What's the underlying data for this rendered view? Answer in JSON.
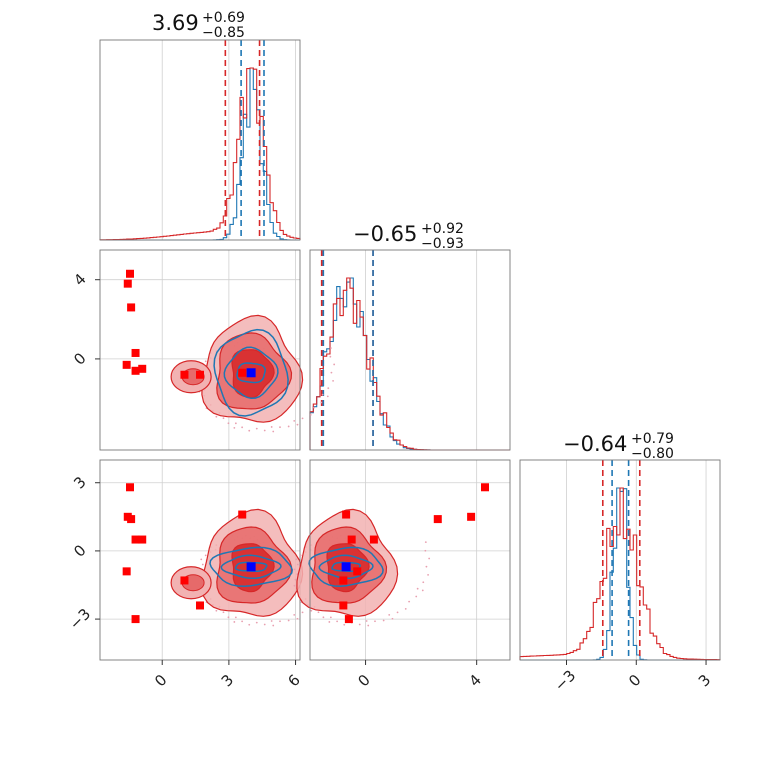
{
  "chart_data": {
    "type": "corner",
    "colors": {
      "red": "#d62728",
      "blue": "#1f77b4",
      "fill_light": "#f2b2b2",
      "fill_mid": "#e66a6a",
      "fill_dark": "#d62728",
      "marker_truth": "#0000ff",
      "marker_points": "#ff0000"
    },
    "params": [
      {
        "title": "3.69",
        "plus": "+0.69",
        "minus": "−0.85",
        "range": [
          -2.8,
          6.2
        ],
        "ticks": [
          0,
          3,
          6
        ],
        "tick_labels": [
          "0",
          "3",
          "6"
        ]
      },
      {
        "title": "−0.65",
        "plus": "+0.92",
        "minus": "−0.93",
        "range": [
          -2.0,
          5.2
        ],
        "ticks": [
          0,
          4
        ],
        "tick_labels": [
          "0",
          "4"
        ]
      },
      {
        "title": "−0.64",
        "plus": "+0.79",
        "minus": "−0.80",
        "range": [
          -5.0,
          3.6
        ],
        "ticks": [
          -3,
          0,
          3
        ],
        "tick_labels": [
          "−3",
          "0",
          "3"
        ]
      }
    ],
    "row_ticks": [
      {
        "ticks": [
          4,
          0
        ],
        "tick_labels": [
          "4",
          "0"
        ]
      },
      {
        "ticks": [
          3,
          0,
          -3
        ],
        "tick_labels": [
          "3",
          "0",
          "−3"
        ]
      }
    ],
    "hist_red_vlines": [
      [
        2.84,
        4.38
      ],
      [
        -1.58,
        0.27
      ],
      [
        -1.44,
        0.15
      ]
    ],
    "hist_blue_vlines": [
      [
        3.55,
        4.58
      ],
      [
        -1.52,
        0.27
      ],
      [
        -1.04,
        -0.33
      ]
    ],
    "hist_params": [
      {
        "red_mu": 4.0,
        "red_sigma": 0.55,
        "red_tail": 0.35,
        "blue_mu": 4.05,
        "blue_sigma": 0.42
      },
      {
        "red_mu": -0.65,
        "red_sigma": 0.75,
        "red_tail": 0.0,
        "blue_mu": -0.65,
        "blue_sigma": 0.72
      },
      {
        "red_mu": -0.65,
        "red_sigma": 0.75,
        "red_tail": 0.25,
        "blue_mu": -0.68,
        "blue_sigma": 0.28
      }
    ],
    "truth": {
      "x": 4.0,
      "y": -0.7,
      "z": -0.7
    },
    "points": [
      {
        "x": -1.45,
        "y": 4.3,
        "z": 2.8
      },
      {
        "x": -1.55,
        "y": 3.8,
        "z": 1.5
      },
      {
        "x": -1.4,
        "y": 2.6,
        "z": 1.4
      },
      {
        "x": -1.2,
        "y": 0.3,
        "z": 0.5
      },
      {
        "x": -1.6,
        "y": -0.3,
        "z": -0.9
      },
      {
        "x": -0.9,
        "y": -0.5,
        "z": 0.5
      },
      {
        "x": 1.0,
        "y": -0.8,
        "z": -1.3
      },
      {
        "x": 1.7,
        "y": -0.8,
        "z": -2.4
      },
      {
        "x": 3.6,
        "y": -0.7,
        "z": 1.6
      },
      {
        "x": -1.2,
        "y": -0.6,
        "z": -3.0
      }
    ]
  }
}
